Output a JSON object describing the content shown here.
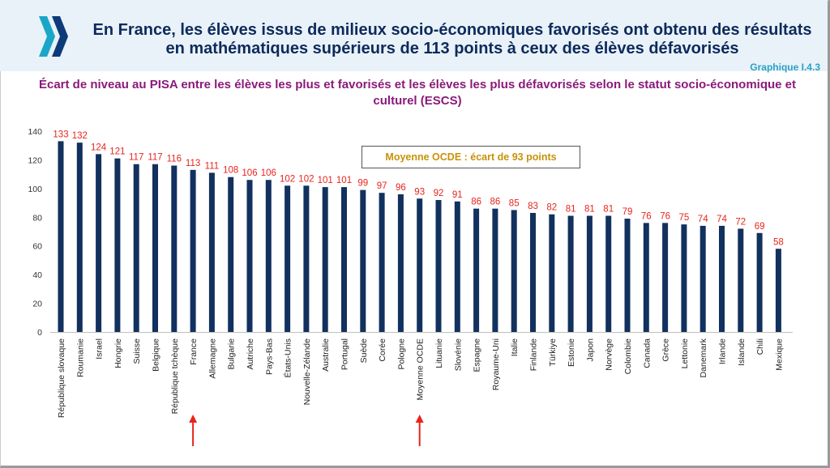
{
  "header": {
    "headline": "En France, les élèves issus de milieux socio-économiques favorisés ont obtenu des résultats en mathématiques supérieurs de 113 points à ceux des élèves défavorisés",
    "figure_ref": "Graphique I.4.3",
    "logo_icon": "oecd-logo-icon"
  },
  "subtitle": "Écart de niveau au PISA entre les élèves les plus et favorisés et les élèves les plus défavorisés selon le statut socio-économique et culturel (ESCS)",
  "average_box": "Moyenne OCDE : écart de 93 points",
  "colors": {
    "bar": "#12315e",
    "value_label": "#e8241c",
    "headline": "#0d2a5c",
    "subtitle": "#8a1a7a",
    "avg_text": "#c8920a",
    "arrow": "#e8241c"
  },
  "chart_data": {
    "type": "bar",
    "title": "",
    "xlabel": "",
    "ylabel": "",
    "ylim": [
      0,
      140
    ],
    "yticks": [
      0,
      20,
      40,
      60,
      80,
      100,
      120,
      140
    ],
    "grid": false,
    "categories": [
      "République slovaque",
      "Roumanie",
      "Israel",
      "Hongrie",
      "Suisse",
      "Belgique",
      "République tchèque",
      "France",
      "Allemagne",
      "Bulgarie",
      "Autriche",
      "Pays-Bas",
      "États-Unis",
      "Nouvelle-Zélande",
      "Australie",
      "Portugal",
      "Suède",
      "Corée",
      "Pologne",
      "Moyenne OCDE",
      "Lituanie",
      "Slovénie",
      "Espagne",
      "Royaume-Uni",
      "Italie",
      "Finlande",
      "Türkiye",
      "Estonie",
      "Japon",
      "Norvège",
      "Colombie",
      "Canada",
      "Grèce",
      "Lettonie",
      "Danemark",
      "Irlande",
      "Islande",
      "Chili",
      "Mexique"
    ],
    "values": [
      133,
      132,
      124,
      121,
      117,
      117,
      116,
      113,
      111,
      108,
      106,
      106,
      102,
      102,
      101,
      101,
      99,
      97,
      96,
      93,
      92,
      91,
      86,
      86,
      85,
      83,
      82,
      81,
      81,
      81,
      79,
      76,
      76,
      75,
      74,
      74,
      72,
      69,
      58
    ],
    "highlighted_categories": [
      "France",
      "Moyenne OCDE"
    ]
  }
}
